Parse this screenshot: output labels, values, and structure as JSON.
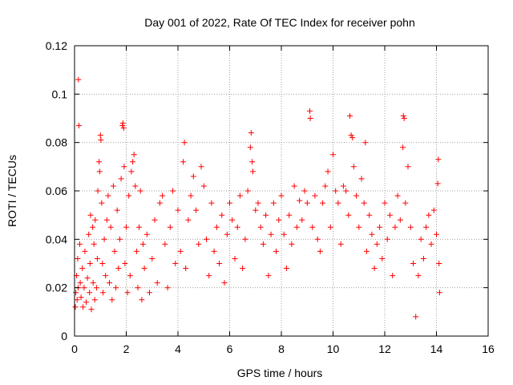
{
  "chart_data": {
    "type": "scatter",
    "title": "Day 001 of 2022, Rate Of TEC Index for receiver pohn",
    "xlabel": "GPS time / hours",
    "ylabel": "ROTI / TECUs",
    "xlim": [
      0,
      16
    ],
    "ylim": [
      0,
      0.12
    ],
    "x_ticks": [
      0,
      2,
      4,
      6,
      8,
      10,
      12,
      14,
      16
    ],
    "x_tick_labels": [
      "0",
      "2",
      "4",
      "6",
      "8",
      "10",
      "12",
      "14",
      "16"
    ],
    "y_ticks": [
      0,
      0.02,
      0.04,
      0.06,
      0.08,
      0.1,
      0.12
    ],
    "y_tick_labels": [
      "0",
      "0.02",
      "0.04",
      "0.06",
      "0.08",
      "0.1",
      "0.12"
    ],
    "grid": true,
    "marker": "+",
    "color": "#ff0000",
    "series": [
      {
        "name": "ROTI",
        "points": [
          [
            0.03,
            0.012
          ],
          [
            0.05,
            0.018
          ],
          [
            0.08,
            0.025
          ],
          [
            0.1,
            0.015
          ],
          [
            0.12,
            0.032
          ],
          [
            0.14,
            0.02
          ],
          [
            0.15,
            0.106
          ],
          [
            0.17,
            0.087
          ],
          [
            0.2,
            0.038
          ],
          [
            0.22,
            0.022
          ],
          [
            0.25,
            0.016
          ],
          [
            0.3,
            0.028
          ],
          [
            0.33,
            0.012
          ],
          [
            0.37,
            0.02
          ],
          [
            0.4,
            0.035
          ],
          [
            0.45,
            0.014
          ],
          [
            0.5,
            0.024
          ],
          [
            0.55,
            0.042
          ],
          [
            0.58,
            0.018
          ],
          [
            0.6,
            0.03
          ],
          [
            0.62,
            0.05
          ],
          [
            0.65,
            0.011
          ],
          [
            0.7,
            0.045
          ],
          [
            0.72,
            0.022
          ],
          [
            0.75,
            0.038
          ],
          [
            0.78,
            0.015
          ],
          [
            0.8,
            0.048
          ],
          [
            0.85,
            0.02
          ],
          [
            0.88,
            0.032
          ],
          [
            0.9,
            0.06
          ],
          [
            0.95,
            0.072
          ],
          [
            0.97,
            0.068
          ],
          [
            1.0,
            0.083
          ],
          [
            1.02,
            0.081
          ],
          [
            1.05,
            0.055
          ],
          [
            1.08,
            0.03
          ],
          [
            1.1,
            0.018
          ],
          [
            1.15,
            0.04
          ],
          [
            1.2,
            0.025
          ],
          [
            1.25,
            0.048
          ],
          [
            1.3,
            0.058
          ],
          [
            1.35,
            0.022
          ],
          [
            1.4,
            0.045
          ],
          [
            1.45,
            0.015
          ],
          [
            1.5,
            0.062
          ],
          [
            1.55,
            0.035
          ],
          [
            1.6,
            0.02
          ],
          [
            1.65,
            0.052
          ],
          [
            1.7,
            0.028
          ],
          [
            1.75,
            0.04
          ],
          [
            1.8,
            0.065
          ],
          [
            1.85,
            0.087
          ],
          [
            1.87,
            0.088
          ],
          [
            1.9,
            0.086
          ],
          [
            1.92,
            0.07
          ],
          [
            1.95,
            0.03
          ],
          [
            2.0,
            0.045
          ],
          [
            2.05,
            0.018
          ],
          [
            2.1,
            0.058
          ],
          [
            2.15,
            0.025
          ],
          [
            2.2,
            0.068
          ],
          [
            2.25,
            0.072
          ],
          [
            2.3,
            0.075
          ],
          [
            2.35,
            0.062
          ],
          [
            2.4,
            0.035
          ],
          [
            2.45,
            0.02
          ],
          [
            2.5,
            0.045
          ],
          [
            2.55,
            0.06
          ],
          [
            2.6,
            0.015
          ],
          [
            2.65,
            0.038
          ],
          [
            2.7,
            0.028
          ],
          [
            2.8,
            0.042
          ],
          [
            2.9,
            0.018
          ],
          [
            3.0,
            0.032
          ],
          [
            3.1,
            0.048
          ],
          [
            3.2,
            0.022
          ],
          [
            3.3,
            0.055
          ],
          [
            3.4,
            0.058
          ],
          [
            3.5,
            0.038
          ],
          [
            3.6,
            0.02
          ],
          [
            3.7,
            0.045
          ],
          [
            3.8,
            0.06
          ],
          [
            3.9,
            0.03
          ],
          [
            4.0,
            0.052
          ],
          [
            4.1,
            0.035
          ],
          [
            4.2,
            0.072
          ],
          [
            4.25,
            0.08
          ],
          [
            4.3,
            0.028
          ],
          [
            4.4,
            0.048
          ],
          [
            4.5,
            0.058
          ],
          [
            4.6,
            0.066
          ],
          [
            4.7,
            0.052
          ],
          [
            4.8,
            0.038
          ],
          [
            4.9,
            0.07
          ],
          [
            5.0,
            0.062
          ],
          [
            5.1,
            0.04
          ],
          [
            5.2,
            0.025
          ],
          [
            5.3,
            0.055
          ],
          [
            5.4,
            0.035
          ],
          [
            5.5,
            0.045
          ],
          [
            5.6,
            0.03
          ],
          [
            5.7,
            0.05
          ],
          [
            5.8,
            0.022
          ],
          [
            5.9,
            0.042
          ],
          [
            6.0,
            0.055
          ],
          [
            6.1,
            0.048
          ],
          [
            6.2,
            0.032
          ],
          [
            6.3,
            0.045
          ],
          [
            6.4,
            0.058
          ],
          [
            6.5,
            0.028
          ],
          [
            6.6,
            0.04
          ],
          [
            6.7,
            0.06
          ],
          [
            6.8,
            0.078
          ],
          [
            6.83,
            0.084
          ],
          [
            6.87,
            0.072
          ],
          [
            6.9,
            0.068
          ],
          [
            7.0,
            0.052
          ],
          [
            7.1,
            0.055
          ],
          [
            7.2,
            0.045
          ],
          [
            7.3,
            0.038
          ],
          [
            7.4,
            0.05
          ],
          [
            7.5,
            0.025
          ],
          [
            7.6,
            0.042
          ],
          [
            7.7,
            0.055
          ],
          [
            7.8,
            0.035
          ],
          [
            7.9,
            0.048
          ],
          [
            8.0,
            0.058
          ],
          [
            8.1,
            0.042
          ],
          [
            8.2,
            0.028
          ],
          [
            8.3,
            0.05
          ],
          [
            8.4,
            0.038
          ],
          [
            8.5,
            0.062
          ],
          [
            8.6,
            0.045
          ],
          [
            8.7,
            0.056
          ],
          [
            8.8,
            0.048
          ],
          [
            8.9,
            0.06
          ],
          [
            9.0,
            0.055
          ],
          [
            9.1,
            0.093
          ],
          [
            9.12,
            0.09
          ],
          [
            9.2,
            0.045
          ],
          [
            9.3,
            0.058
          ],
          [
            9.4,
            0.04
          ],
          [
            9.5,
            0.035
          ],
          [
            9.6,
            0.055
          ],
          [
            9.7,
            0.062
          ],
          [
            9.8,
            0.068
          ],
          [
            9.9,
            0.045
          ],
          [
            10.0,
            0.075
          ],
          [
            10.1,
            0.06
          ],
          [
            10.2,
            0.055
          ],
          [
            10.3,
            0.038
          ],
          [
            10.4,
            0.062
          ],
          [
            10.5,
            0.06
          ],
          [
            10.6,
            0.05
          ],
          [
            10.65,
            0.091
          ],
          [
            10.7,
            0.083
          ],
          [
            10.75,
            0.082
          ],
          [
            10.8,
            0.07
          ],
          [
            10.9,
            0.058
          ],
          [
            11.0,
            0.045
          ],
          [
            11.1,
            0.065
          ],
          [
            11.2,
            0.055
          ],
          [
            11.25,
            0.08
          ],
          [
            11.3,
            0.035
          ],
          [
            11.4,
            0.05
          ],
          [
            11.5,
            0.042
          ],
          [
            11.6,
            0.028
          ],
          [
            11.7,
            0.038
          ],
          [
            11.8,
            0.045
          ],
          [
            11.9,
            0.032
          ],
          [
            12.0,
            0.055
          ],
          [
            12.1,
            0.04
          ],
          [
            12.2,
            0.05
          ],
          [
            12.3,
            0.025
          ],
          [
            12.4,
            0.045
          ],
          [
            12.5,
            0.058
          ],
          [
            12.6,
            0.048
          ],
          [
            12.7,
            0.078
          ],
          [
            12.72,
            0.091
          ],
          [
            12.75,
            0.09
          ],
          [
            12.8,
            0.055
          ],
          [
            12.9,
            0.07
          ],
          [
            13.0,
            0.045
          ],
          [
            13.1,
            0.03
          ],
          [
            13.2,
            0.008
          ],
          [
            13.3,
            0.025
          ],
          [
            13.4,
            0.04
          ],
          [
            13.5,
            0.032
          ],
          [
            13.6,
            0.045
          ],
          [
            13.7,
            0.05
          ],
          [
            13.8,
            0.038
          ],
          [
            13.9,
            0.052
          ],
          [
            14.0,
            0.042
          ],
          [
            14.05,
            0.063
          ],
          [
            14.07,
            0.073
          ],
          [
            14.1,
            0.03
          ],
          [
            14.12,
            0.018
          ]
        ]
      }
    ]
  }
}
